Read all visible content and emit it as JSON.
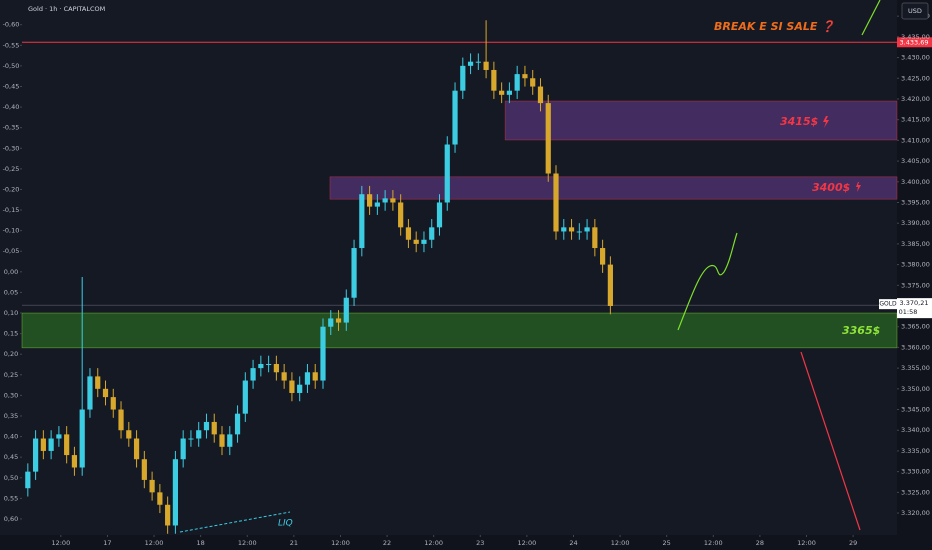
{
  "header": {
    "symbol": "Gold · 1h · CAPITALCOM",
    "currency": "USD"
  },
  "chart_data": {
    "type": "candlestick",
    "x": [
      1.5,
      3.5,
      5.5,
      7.5,
      9.5,
      11.5,
      13.5,
      15.5,
      17.5,
      19.5,
      21.5,
      23.5,
      25.5,
      27.5,
      29.5,
      31.5,
      33.5,
      35.5,
      37.5,
      39.5,
      41.5,
      43.5,
      45.5,
      47.5,
      49.5,
      51.5,
      53.5,
      55.5,
      57.5,
      59.5,
      61.5,
      63.5,
      65.5,
      67.5,
      69.5,
      71.5,
      73.5,
      75.5,
      77.5,
      79.5,
      81.5,
      83.5,
      85.5,
      87.5,
      89.5,
      91.5,
      93.5,
      95.5,
      97.5,
      99.5,
      101.5,
      103.5,
      105.5,
      107.5,
      109.5,
      111.5,
      113.5,
      115.5,
      117.5,
      119.5,
      121.5,
      123.5,
      125.5,
      127.5,
      129.5,
      131.5,
      133.5,
      135.5,
      137.5,
      139.5,
      141.5,
      143.5,
      145.5,
      147.5,
      149.5,
      151.5
    ],
    "open": [
      3326,
      3330,
      3338,
      3335,
      3338,
      3339,
      3334,
      3331,
      3345,
      3353,
      3350,
      3348,
      3345,
      3340,
      3338,
      3333,
      3328,
      3325,
      3322,
      3317,
      3333,
      3338,
      3338,
      3340,
      3342,
      3339,
      3336,
      3339,
      3344,
      3352,
      3355,
      3356,
      3356,
      3354,
      3352,
      3349,
      3351,
      3354,
      3352,
      3365,
      3367,
      3366,
      3372,
      3384,
      3397,
      3394,
      3395,
      3396,
      3395,
      3389,
      3386,
      3385,
      3386,
      3389,
      3395,
      3409,
      3422,
      3428,
      3429,
      3429,
      3427,
      3422,
      3421,
      3422,
      3426,
      3425,
      3423,
      3419,
      3402,
      3388,
      3389,
      3388,
      3388,
      3389,
      3384,
      3380
    ],
    "high": [
      3332,
      3340,
      3340,
      3340,
      3341,
      3341,
      3336,
      3377,
      3355,
      3355,
      3352,
      3350,
      3347,
      3342,
      3340,
      3335,
      3330,
      3327,
      3324,
      3335,
      3340,
      3340,
      3342,
      3344,
      3344,
      3341,
      3341,
      3346,
      3354,
      3357,
      3358,
      3358,
      3358,
      3356,
      3354,
      3353,
      3356,
      3356,
      3367,
      3369,
      3369,
      3374,
      3386,
      3399,
      3399,
      3397,
      3398,
      3398,
      3397,
      3391,
      3388,
      3388,
      3391,
      3397,
      3411,
      3424,
      3430,
      3431,
      3431,
      3439,
      3429,
      3424,
      3424,
      3428,
      3428,
      3427,
      3425,
      3421,
      3404,
      3391,
      3391,
      3390,
      3391,
      3391,
      3386,
      3382
    ],
    "low": [
      3324,
      3328,
      3333,
      3333,
      3336,
      3332,
      3329,
      3329,
      3343,
      3348,
      3346,
      3343,
      3338,
      3336,
      3331,
      3326,
      3323,
      3320,
      3315,
      3315,
      3331,
      3336,
      3336,
      3338,
      3337,
      3334,
      3334,
      3337,
      3342,
      3350,
      3353,
      3354,
      3352,
      3350,
      3347,
      3347,
      3349,
      3350,
      3350,
      3363,
      3364,
      3364,
      3370,
      3382,
      3392,
      3392,
      3393,
      3393,
      3387,
      3384,
      3383,
      3383,
      3384,
      3387,
      3393,
      3407,
      3420,
      3426,
      3427,
      3425,
      3420,
      3419,
      3419,
      3420,
      3423,
      3421,
      3417,
      3400,
      3386,
      3386,
      3386,
      3386,
      3386,
      3382,
      3378,
      3368
    ],
    "close": [
      3330,
      3338,
      3335,
      3338,
      3339,
      3334,
      3331,
      3345,
      3353,
      3350,
      3348,
      3345,
      3340,
      3338,
      3333,
      3328,
      3325,
      3322,
      3317,
      3333,
      3338,
      3338,
      3340,
      3342,
      3339,
      3336,
      3339,
      3344,
      3352,
      3355,
      3356,
      3356,
      3354,
      3352,
      3349,
      3351,
      3354,
      3352,
      3365,
      3367,
      3366,
      3372,
      3384,
      3397,
      3394,
      3395,
      3396,
      3395,
      3389,
      3386,
      3385,
      3386,
      3389,
      3395,
      3409,
      3422,
      3428,
      3429,
      3429,
      3427,
      3422,
      3421,
      3422,
      3426,
      3425,
      3423,
      3419,
      3402,
      3388,
      3389,
      3388,
      3388,
      3389,
      3384,
      3380,
      3370
    ],
    "up_color": "#3ccde3",
    "down_color": "#d8a82c",
    "xlim": [
      0,
      225.3
    ],
    "xticks": [
      {
        "value": 10,
        "label": "12:00"
      },
      {
        "value": 22,
        "label": "17"
      },
      {
        "value": 34,
        "label": "12:00"
      },
      {
        "value": 46,
        "label": "18"
      },
      {
        "value": 58,
        "label": "12:00"
      },
      {
        "value": 70,
        "label": "21"
      },
      {
        "value": 82,
        "label": "12:00"
      },
      {
        "value": 94,
        "label": "22"
      },
      {
        "value": 106,
        "label": "12:00"
      },
      {
        "value": 118,
        "label": "23"
      },
      {
        "value": 130,
        "label": "12:00"
      },
      {
        "value": 142,
        "label": "24"
      },
      {
        "value": 154,
        "label": "12:00"
      },
      {
        "value": 166,
        "label": "25"
      },
      {
        "value": 178,
        "label": "12:00"
      },
      {
        "value": 190,
        "label": "28"
      },
      {
        "value": 202,
        "label": "12:00"
      },
      {
        "value": 214,
        "label": "29"
      }
    ],
    "ylim": [
      3314.7,
      3443.9
    ],
    "yticks": [
      {
        "value": 3320,
        "label": "3.320,00"
      },
      {
        "value": 3325,
        "label": "3.325,00"
      },
      {
        "value": 3330,
        "label": "3.330,00"
      },
      {
        "value": 3335,
        "label": "3.335,00"
      },
      {
        "value": 3340,
        "label": "3.340,00"
      },
      {
        "value": 3345,
        "label": "3.345,00"
      },
      {
        "value": 3350,
        "label": "3.350,00"
      },
      {
        "value": 3355,
        "label": "3.355,00"
      },
      {
        "value": 3360,
        "label": "3.360,00"
      },
      {
        "value": 3365,
        "label": "3.365,00"
      },
      {
        "value": 3375,
        "label": "3.375,00"
      },
      {
        "value": 3380,
        "label": "3.380,00"
      },
      {
        "value": 3385,
        "label": "3.385,00"
      },
      {
        "value": 3390,
        "label": "3.390,00"
      },
      {
        "value": 3395,
        "label": "3.395,00"
      },
      {
        "value": 3400,
        "label": "3.400,00"
      },
      {
        "value": 3405,
        "label": "3.405,00"
      },
      {
        "value": 3410,
        "label": "3.410,00"
      },
      {
        "value": 3415,
        "label": "3.415,00"
      },
      {
        "value": 3420,
        "label": "3.420,00"
      },
      {
        "value": 3425,
        "label": "3.425,00"
      },
      {
        "value": 3430,
        "label": "3.430,00"
      },
      {
        "value": 3435,
        "label": "3.435,00"
      },
      {
        "value": 3440,
        "label": "3.440,00"
      }
    ],
    "y2lim": [
      -0.66,
      0.639
    ],
    "y2ticks": [
      {
        "value": -0.6,
        "label": "-0,60"
      },
      {
        "value": -0.55,
        "label": "-0,55"
      },
      {
        "value": -0.5,
        "label": "-0,50"
      },
      {
        "value": -0.45,
        "label": "-0,45"
      },
      {
        "value": -0.4,
        "label": "-0,40"
      },
      {
        "value": -0.35,
        "label": "-0,35"
      },
      {
        "value": -0.3,
        "label": "-0,30"
      },
      {
        "value": -0.25,
        "label": "-0,25"
      },
      {
        "value": -0.2,
        "label": "-0,20"
      },
      {
        "value": -0.15,
        "label": "-0,15"
      },
      {
        "value": -0.1,
        "label": "-0,10"
      },
      {
        "value": -0.05,
        "label": "-0,05"
      },
      {
        "value": 0,
        "label": "0,00"
      },
      {
        "value": 0.05,
        "label": "0,05"
      },
      {
        "value": 0.1,
        "label": "0,10"
      },
      {
        "value": 0.15,
        "label": "0,15"
      },
      {
        "value": 0.2,
        "label": "0,20"
      },
      {
        "value": 0.25,
        "label": "0,25"
      },
      {
        "value": 0.3,
        "label": "0,30"
      },
      {
        "value": 0.35,
        "label": "0,35"
      },
      {
        "value": 0.4,
        "label": "0,40"
      },
      {
        "value": 0.45,
        "label": "0,45"
      },
      {
        "value": 0.5,
        "label": "0,50"
      },
      {
        "value": 0.55,
        "label": "0,55"
      },
      {
        "value": 0.6,
        "label": "0,60"
      }
    ],
    "grid": false,
    "last_price": {
      "value": 3370.21,
      "label": "3.370,21",
      "symbol": "GOLD",
      "countdown": "01:58"
    },
    "level_line": {
      "value": 3433.69,
      "label": "3.433,69",
      "color": "#f23645"
    },
    "zones": [
      {
        "top": 3419.5,
        "bottom": 3410.1,
        "x_start": 124.4,
        "label": "3415$",
        "color": "#6a3d8f",
        "text_color": "#f23645"
      },
      {
        "top": 3401.2,
        "bottom": 3395.8,
        "x_start": 79.3,
        "label": "3400$",
        "color": "#6a3d8f",
        "text_color": "#f23645"
      },
      {
        "top": 3368.3,
        "bottom": 3359.9,
        "x_start": 0,
        "label": "3365$",
        "color": "#2e7d22",
        "text_color": "#8fe33a"
      }
    ],
    "annotations": [
      "BREAK E SI SALE ❓",
      "LIQ"
    ]
  }
}
